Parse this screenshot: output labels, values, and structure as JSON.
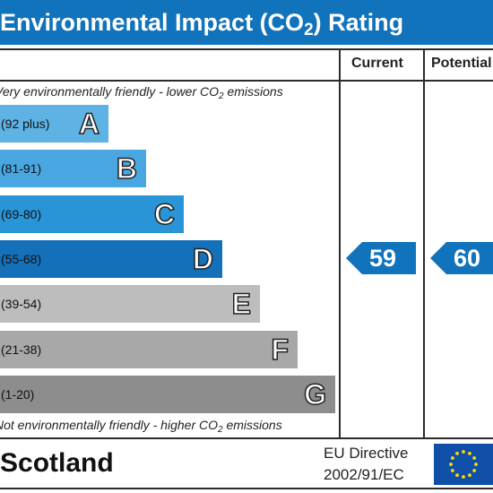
{
  "title": {
    "main": "Environmental Impact (CO",
    "sub": "2",
    "rest": ") Rating"
  },
  "columns": {
    "current": "Current",
    "potential": "Potential"
  },
  "notes": {
    "top_pre": "Very environmentally friendly - lower CO",
    "top_sub": "2",
    "top_post": " emissions",
    "bottom_pre": "Not environmentally friendly - higher CO",
    "bottom_sub": "2",
    "bottom_post": " emissions"
  },
  "footer": {
    "region": "Scotland",
    "directive_line1": "EU Directive",
    "directive_line2": "2002/91/EC"
  },
  "colors": {
    "title_bar": "#1173bb",
    "arrow": "#1173bb",
    "flag": "#0f4fa8",
    "stars": "#ffdd00"
  },
  "chart_data": {
    "type": "bar",
    "title": "Environmental Impact (CO2) Rating",
    "categories": [
      "A",
      "B",
      "C",
      "D",
      "E",
      "F",
      "G"
    ],
    "bands": [
      {
        "letter": "A",
        "range": "(92 plus)",
        "color": "#5eb3e4"
      },
      {
        "letter": "B",
        "range": "(81-91)",
        "color": "#4aa6e0"
      },
      {
        "letter": "C",
        "range": "(69-80)",
        "color": "#2a95d6"
      },
      {
        "letter": "D",
        "range": "(55-68)",
        "color": "#1470b8"
      },
      {
        "letter": "E",
        "range": "(39-54)",
        "color": "#bdbdbd"
      },
      {
        "letter": "F",
        "range": "(21-38)",
        "color": "#a8a8a8"
      },
      {
        "letter": "G",
        "range": "(1-20)",
        "color": "#8d8d8d"
      }
    ],
    "current": 59,
    "potential": 60,
    "current_band": "D",
    "potential_band": "D"
  }
}
